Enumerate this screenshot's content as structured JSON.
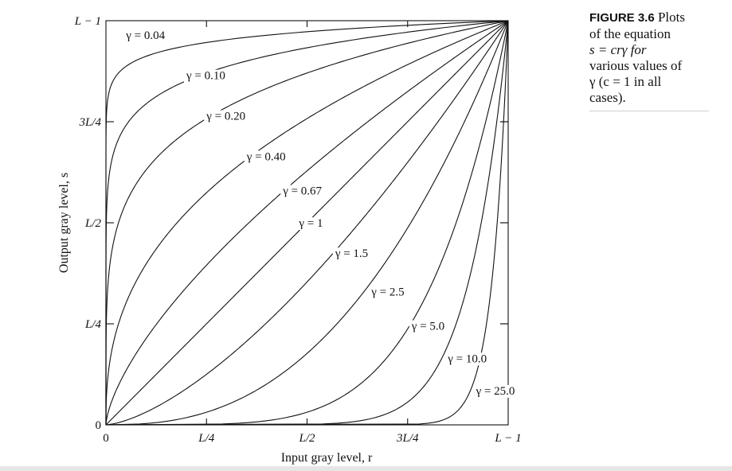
{
  "caption": {
    "figure_label": "FIGURE 3.6",
    "text_line1": "Plots",
    "text_line2": "of the equation",
    "text_line3": "s = crγ for",
    "text_line4": "various values of",
    "text_line5": "γ (c = 1 in all",
    "text_line6": "cases)."
  },
  "chart_data": {
    "type": "line",
    "title": "",
    "xlabel": "Input gray level, r",
    "ylabel": "Output gray level, s",
    "xlim": [
      0,
      1
    ],
    "ylim": [
      0,
      1
    ],
    "x_ticks": [
      {
        "value": 0,
        "label": "0"
      },
      {
        "value": 0.25,
        "label": "L/4"
      },
      {
        "value": 0.5,
        "label": "L/2"
      },
      {
        "value": 0.75,
        "label": "3L/4"
      },
      {
        "value": 1,
        "label": "L − 1"
      }
    ],
    "y_ticks": [
      {
        "value": 0,
        "label": "0"
      },
      {
        "value": 0.25,
        "label": "L/4"
      },
      {
        "value": 0.5,
        "label": "L/2"
      },
      {
        "value": 0.75,
        "label": "3L/4"
      },
      {
        "value": 1,
        "label": "L − 1"
      }
    ],
    "equation": "s = c r^γ, c = 1",
    "series": [
      {
        "gamma": 0.04,
        "label": "γ = 0.04",
        "label_at": [
          0.05,
          0.955
        ]
      },
      {
        "gamma": 0.1,
        "label": "γ = 0.10",
        "label_at": [
          0.2,
          0.855
        ]
      },
      {
        "gamma": 0.2,
        "label": "γ = 0.20",
        "label_at": [
          0.25,
          0.755
        ]
      },
      {
        "gamma": 0.4,
        "label": "γ = 0.40",
        "label_at": [
          0.35,
          0.655
        ]
      },
      {
        "gamma": 0.67,
        "label": "γ = 0.67",
        "label_at": [
          0.44,
          0.57
        ]
      },
      {
        "gamma": 1,
        "label": "γ = 1",
        "label_at": [
          0.48,
          0.49
        ]
      },
      {
        "gamma": 1.5,
        "label": "γ = 1.5",
        "label_at": [
          0.57,
          0.415
        ]
      },
      {
        "gamma": 2.5,
        "label": "γ = 2.5",
        "label_at": [
          0.66,
          0.32
        ]
      },
      {
        "gamma": 5.0,
        "label": "γ = 5.0",
        "label_at": [
          0.76,
          0.235
        ]
      },
      {
        "gamma": 10.0,
        "label": "γ = 10.0",
        "label_at": [
          0.85,
          0.155
        ]
      },
      {
        "gamma": 25.0,
        "label": "γ = 25.0",
        "label_at": [
          0.92,
          0.075
        ]
      }
    ],
    "grid": false,
    "legend": "none"
  }
}
